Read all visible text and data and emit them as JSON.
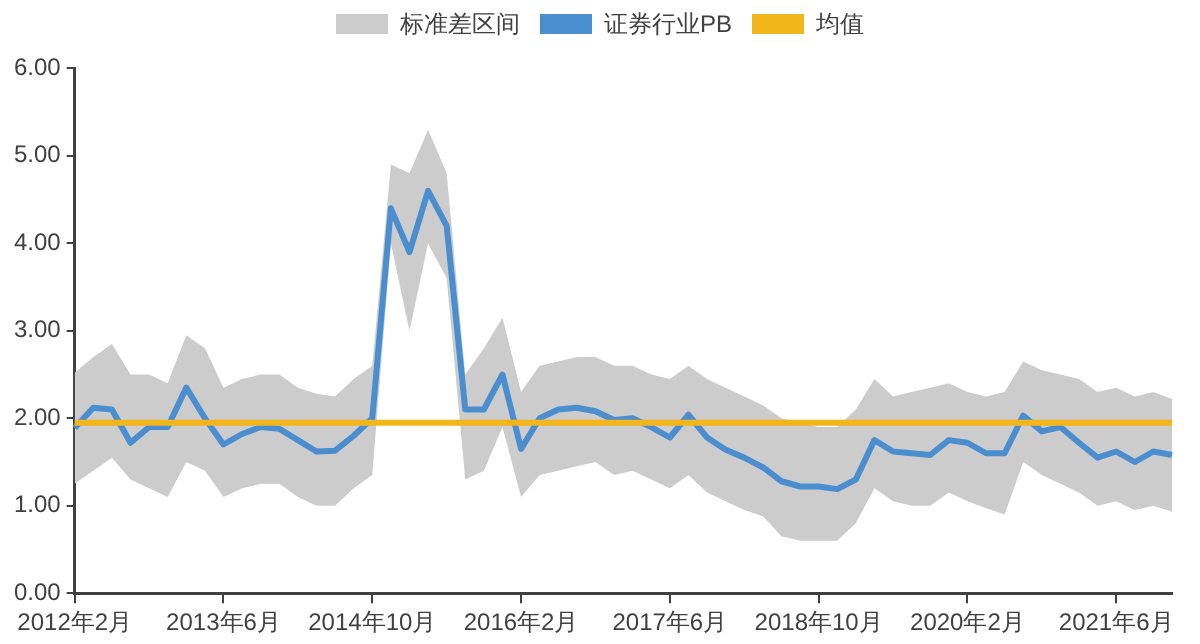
{
  "chart_data": {
    "type": "line",
    "categories": [
      "2012年2月",
      null,
      null,
      null,
      null,
      null,
      null,
      null,
      "2013年6月",
      null,
      null,
      null,
      null,
      null,
      null,
      null,
      "2014年10月",
      null,
      null,
      null,
      null,
      null,
      null,
      null,
      "2016年2月",
      null,
      null,
      null,
      null,
      null,
      null,
      null,
      "2017年6月",
      null,
      null,
      null,
      null,
      null,
      null,
      null,
      "2018年10月",
      null,
      null,
      null,
      null,
      null,
      null,
      null,
      "2020年2月",
      null,
      null,
      null,
      null,
      null,
      null,
      null,
      "2021年6月",
      null,
      null,
      null
    ],
    "series": [
      {
        "name": "证券行业PB",
        "type": "line",
        "color": "#4a8ed0",
        "values": [
          1.89,
          2.12,
          2.1,
          1.72,
          1.9,
          1.9,
          2.35,
          2.0,
          1.7,
          1.82,
          1.9,
          1.88,
          1.75,
          1.62,
          1.63,
          1.8,
          2.0,
          4.4,
          3.9,
          4.6,
          4.2,
          2.1,
          2.1,
          2.5,
          1.65,
          2.0,
          2.1,
          2.12,
          2.08,
          1.98,
          2.0,
          1.9,
          1.78,
          2.04,
          1.78,
          1.64,
          1.55,
          1.44,
          1.28,
          1.22,
          1.22,
          1.19,
          1.3,
          1.75,
          1.62,
          1.6,
          1.58,
          1.75,
          1.72,
          1.6,
          1.6,
          2.03,
          1.85,
          1.9,
          1.72,
          1.55,
          1.62,
          1.5,
          1.62,
          1.58
        ],
        "lower": [
          1.25,
          1.4,
          1.55,
          1.3,
          1.2,
          1.1,
          1.5,
          1.4,
          1.1,
          1.2,
          1.25,
          1.25,
          1.1,
          1.0,
          1.0,
          1.2,
          1.35,
          4.0,
          3.0,
          4.0,
          3.6,
          1.3,
          1.4,
          1.9,
          1.1,
          1.35,
          1.4,
          1.45,
          1.5,
          1.35,
          1.4,
          1.3,
          1.2,
          1.35,
          1.15,
          1.05,
          0.95,
          0.88,
          0.65,
          0.6,
          0.6,
          0.6,
          0.8,
          1.2,
          1.05,
          1.0,
          1.0,
          1.15,
          1.05,
          0.97,
          0.9,
          1.5,
          1.35,
          1.25,
          1.15,
          1.0,
          1.05,
          0.95,
          1.0,
          0.93
        ],
        "upper": [
          2.52,
          2.7,
          2.85,
          2.5,
          2.5,
          2.4,
          2.95,
          2.8,
          2.35,
          2.45,
          2.5,
          2.5,
          2.35,
          2.28,
          2.25,
          2.45,
          2.6,
          4.9,
          4.8,
          5.3,
          4.8,
          2.5,
          2.8,
          3.15,
          2.3,
          2.6,
          2.65,
          2.7,
          2.7,
          2.6,
          2.6,
          2.5,
          2.45,
          2.6,
          2.45,
          2.35,
          2.25,
          2.15,
          2.0,
          1.95,
          1.9,
          1.9,
          2.1,
          2.45,
          2.25,
          2.3,
          2.35,
          2.4,
          2.3,
          2.25,
          2.3,
          2.65,
          2.55,
          2.5,
          2.45,
          2.3,
          2.35,
          2.25,
          2.3,
          2.22
        ]
      }
    ],
    "ref_lines": [
      {
        "axis": "y",
        "value": 1.95,
        "label": "均值",
        "color": "#f2b51c"
      }
    ],
    "annotations": [
      "标准差区间"
    ],
    "ylim": [
      0,
      6
    ],
    "yticks": [
      {
        "value": 0,
        "label": "0.00"
      },
      {
        "value": 1,
        "label": "1.00"
      },
      {
        "value": 2,
        "label": "2.00"
      },
      {
        "value": 3,
        "label": "3.00"
      },
      {
        "value": 4,
        "label": "4.00"
      },
      {
        "value": 5,
        "label": "5.00"
      },
      {
        "value": 6,
        "label": "6.00"
      }
    ],
    "grid": false,
    "legend": "top",
    "marker": "none",
    "line_style": "solid"
  }
}
